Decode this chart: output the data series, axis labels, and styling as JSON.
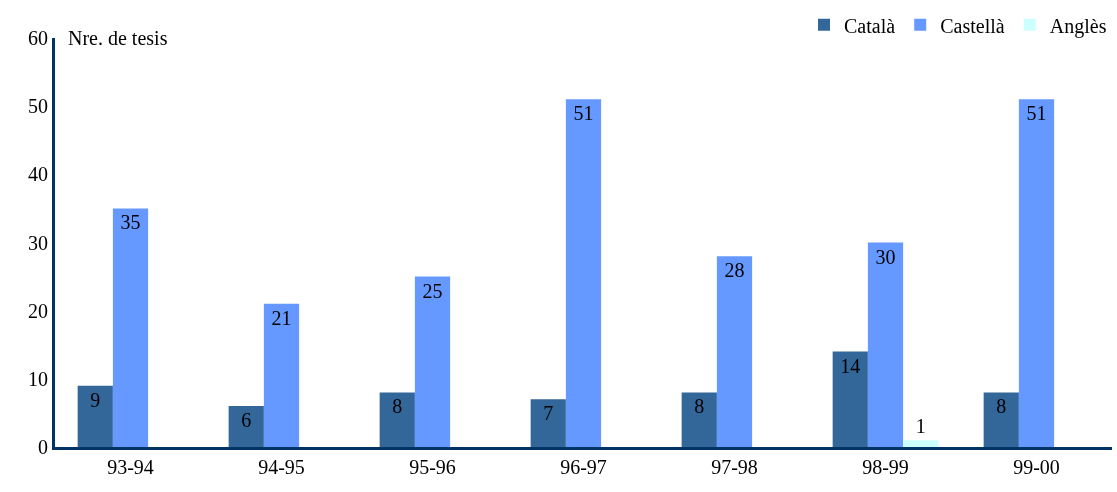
{
  "chart_data": {
    "type": "bar",
    "ylabel": "Nre. de tesis",
    "categories": [
      "93-94",
      "94-95",
      "95-96",
      "96-97",
      "97-98",
      "98-99",
      "99-00"
    ],
    "series": [
      {
        "name": "Català",
        "color": "#336699",
        "values": [
          9,
          6,
          8,
          7,
          8,
          14,
          8
        ]
      },
      {
        "name": "Castellà",
        "color": "#6699ff",
        "values": [
          35,
          21,
          25,
          51,
          28,
          30,
          51
        ]
      },
      {
        "name": "Anglès",
        "color": "#ccffff",
        "values": [
          null,
          null,
          null,
          null,
          null,
          1,
          null
        ]
      }
    ],
    "ylim": [
      0,
      60
    ],
    "yticks": [
      0,
      10,
      20,
      30,
      40,
      50,
      60
    ],
    "data_labels": true,
    "grid": false,
    "legend": "top right"
  }
}
